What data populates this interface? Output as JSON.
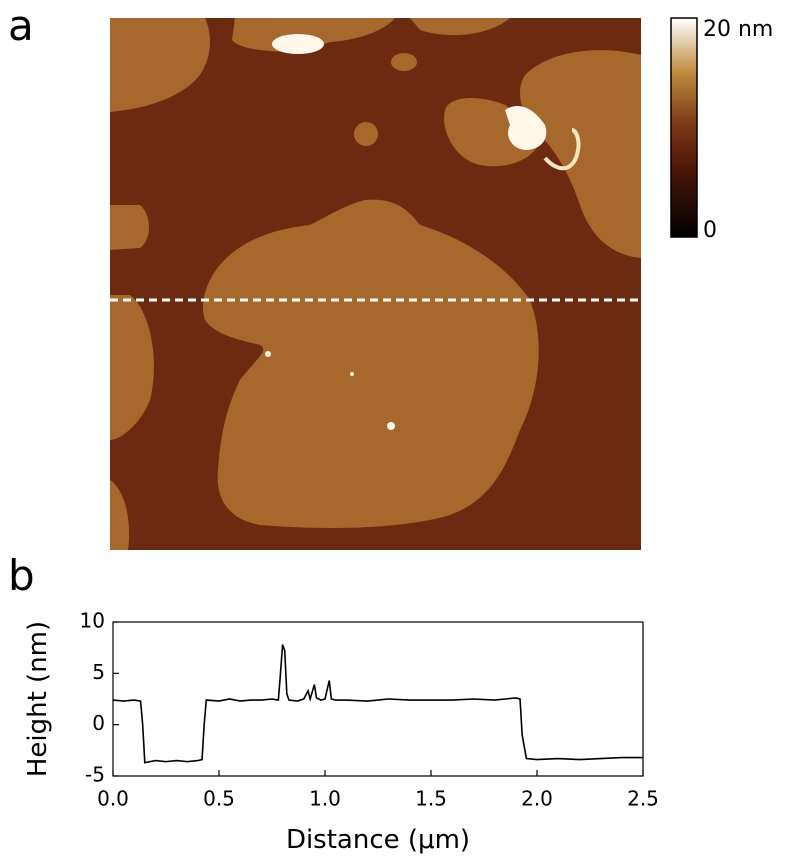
{
  "figure": {
    "image_label": "a",
    "colorbar_max_label": "20 nm",
    "colorbar_min_label": "0"
  },
  "chart_data": {
    "type": "line",
    "panel_label": "b",
    "x_label": "Distance (μm)",
    "y_label": "Height (nm)",
    "color": "#000000",
    "x": [
      0,
      0.05,
      0.1,
      0.13,
      0.14,
      0.15,
      0.2,
      0.25,
      0.3,
      0.35,
      0.4,
      0.42,
      0.43,
      0.44,
      0.5,
      0.55,
      0.6,
      0.65,
      0.7,
      0.75,
      0.78,
      0.79,
      0.8,
      0.81,
      0.82,
      0.83,
      0.87,
      0.9,
      0.92,
      0.93,
      0.95,
      0.96,
      0.98,
      1.0,
      1.02,
      1.03,
      1.05,
      1.1,
      1.2,
      1.3,
      1.4,
      1.5,
      1.6,
      1.7,
      1.8,
      1.9,
      1.92,
      1.93,
      1.95,
      2.0,
      2.1,
      2.2,
      2.3,
      2.4,
      2.5
    ],
    "values": [
      2.4,
      2.3,
      2.4,
      2.3,
      0,
      -3.7,
      -3.5,
      -3.6,
      -3.5,
      -3.6,
      -3.5,
      -3.4,
      0,
      2.4,
      2.3,
      2.5,
      2.3,
      2.4,
      2.4,
      2.5,
      2.4,
      5,
      7.8,
      7.2,
      3,
      2.4,
      2.3,
      2.5,
      3.3,
      2.5,
      3.9,
      2.6,
      2.4,
      2.5,
      4.3,
      2.5,
      2.4,
      2.4,
      2.3,
      2.5,
      2.4,
      2.4,
      2.4,
      2.5,
      2.4,
      2.6,
      2.5,
      -1,
      -3.3,
      -3.4,
      -3.3,
      -3.4,
      -3.3,
      -3.2,
      -3.2
    ],
    "xlim": [
      0,
      2.5
    ],
    "xticks": [
      {
        "value": 0,
        "label": "0.0"
      },
      0.5,
      {
        "value": 1,
        "label": "1.0"
      },
      1.5,
      {
        "value": 2,
        "label": "2.0"
      },
      2.5
    ],
    "ylim": [
      -5,
      10
    ],
    "yticks": [
      -5,
      0,
      5,
      10
    ]
  }
}
